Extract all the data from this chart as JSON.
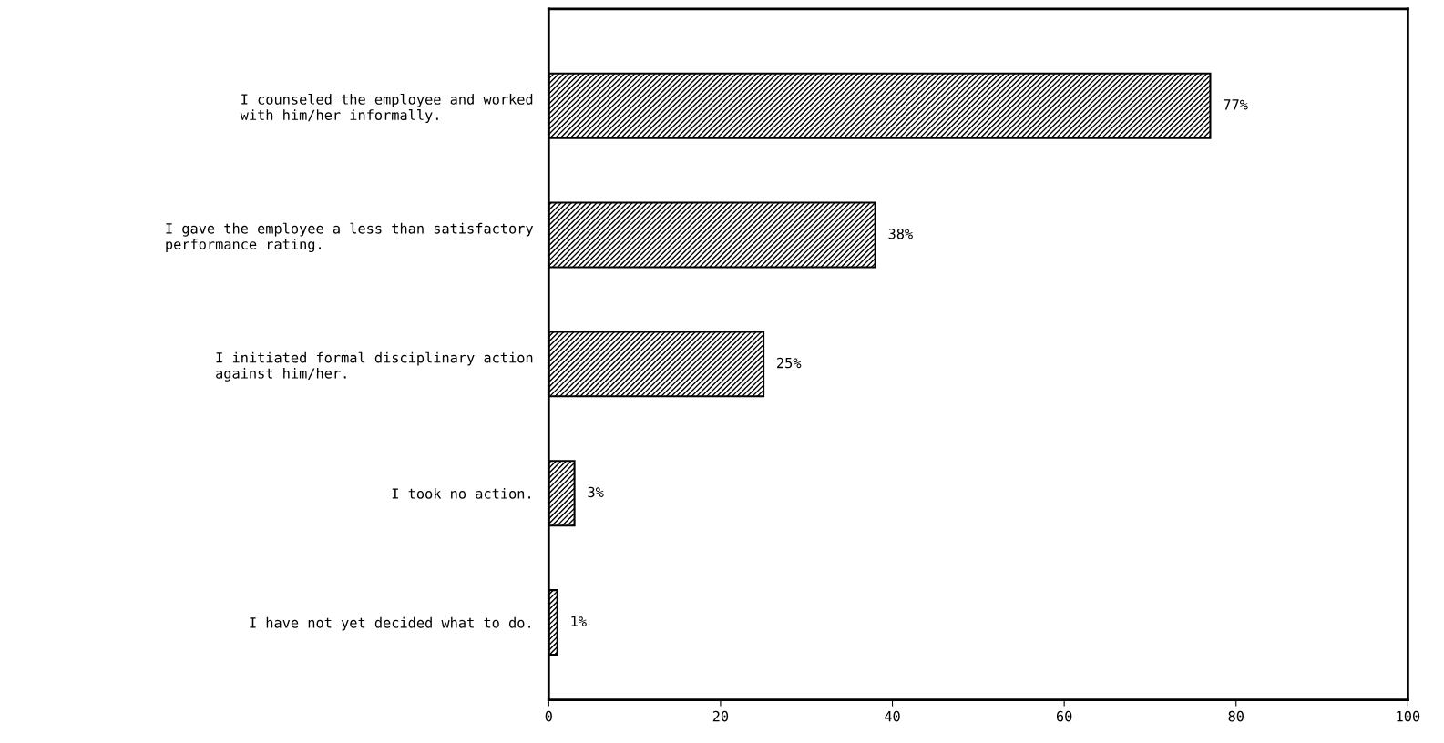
{
  "chart_data": {
    "type": "bar",
    "orientation": "horizontal",
    "categories": [
      "I counseled the employee and worked\nwith him/her informally.",
      "I gave the employee a less than satisfactory\nperformance rating.",
      "I initiated formal disciplinary action\nagainst him/her.",
      "I took no action.",
      "I have not yet decided what to do."
    ],
    "values": [
      77,
      38,
      25,
      3,
      1
    ],
    "value_labels": [
      "77%",
      "38%",
      "25%",
      "3%",
      "1%"
    ],
    "color": "#000000",
    "xlim": [
      0,
      100
    ],
    "xticks": [
      0,
      20,
      40,
      60,
      80,
      100
    ],
    "grid": false,
    "legend": false
  }
}
